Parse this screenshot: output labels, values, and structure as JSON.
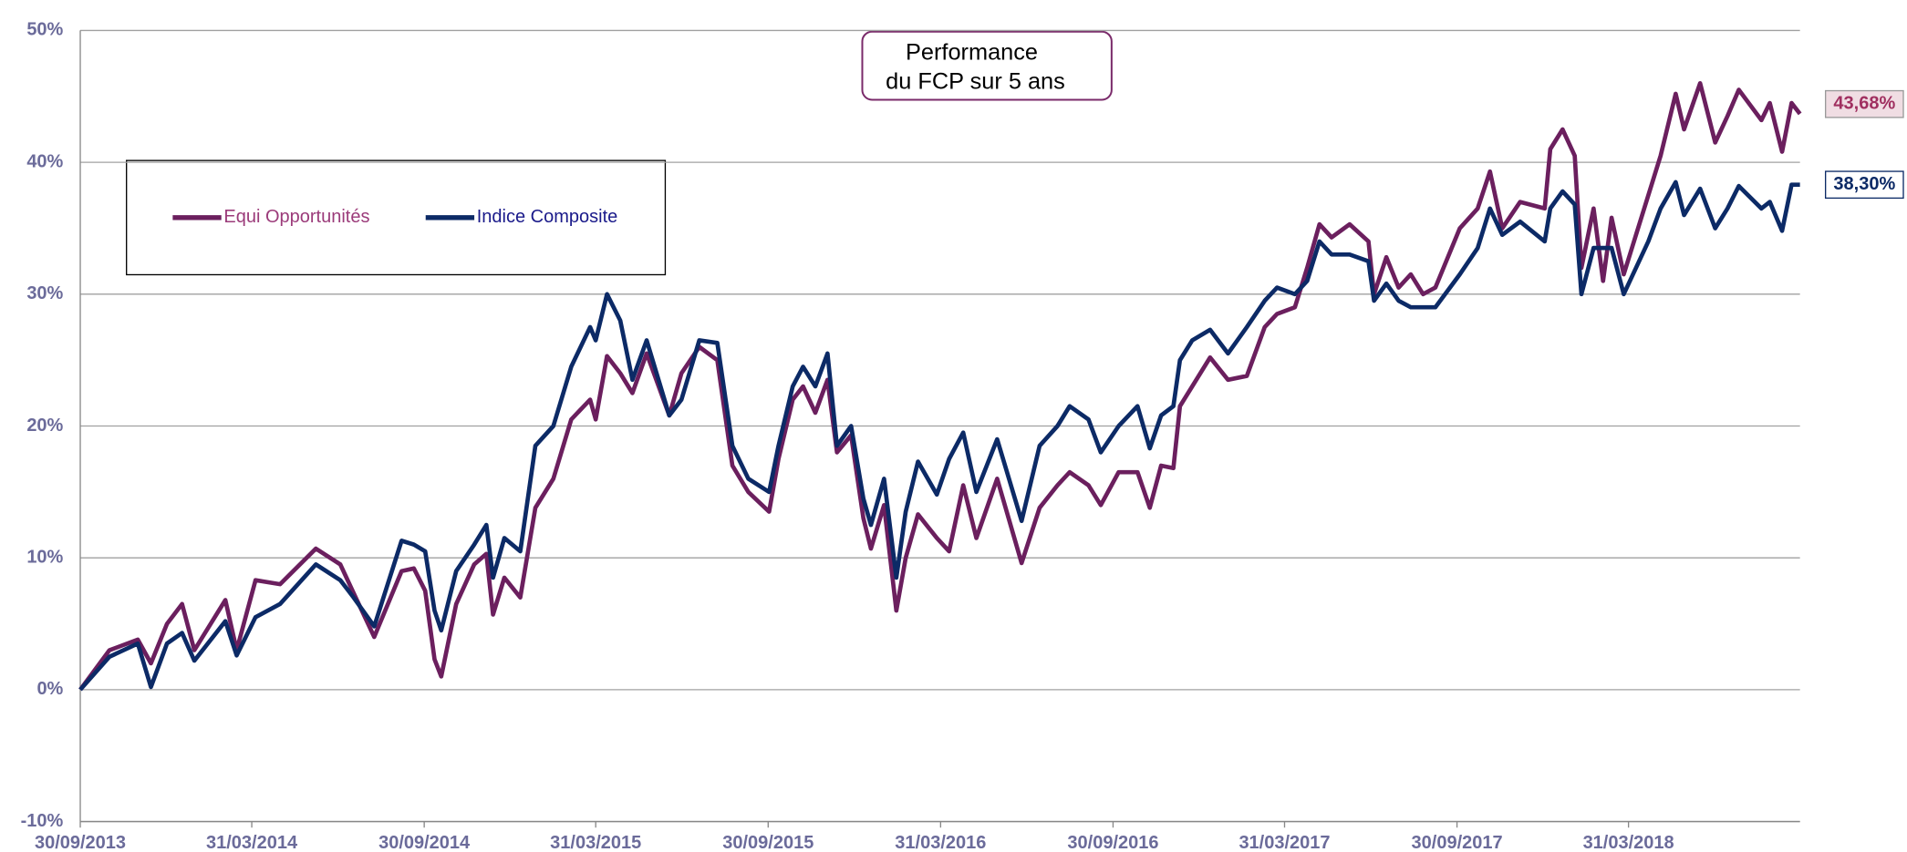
{
  "chart_data": {
    "type": "line",
    "title": [
      "Performance",
      "du FCP sur 5 ans"
    ],
    "x": [
      "30/09/2013",
      "31/10/2013",
      "30/11/2013",
      "14/12/2013",
      "31/12/2013",
      "16/01/2014",
      "29/01/2014",
      "03/03/2014",
      "15/03/2014",
      "04/04/2014",
      "30/04/2014",
      "07/06/2014",
      "03/07/2014",
      "16/07/2014",
      "08/08/2014",
      "06/09/2014",
      "19/09/2014",
      "01/10/2014",
      "11/10/2014",
      "18/10/2014",
      "03/11/2014",
      "22/11/2014",
      "05/12/2014",
      "12/12/2014",
      "24/12/2014",
      "10/01/2015",
      "26/01/2015",
      "14/02/2015",
      "05/03/2015",
      "25/03/2015",
      "31/03/2015",
      "12/04/2015",
      "26/04/2015",
      "09/05/2015",
      "24/05/2015",
      "17/06/2015",
      "30/06/2015",
      "19/07/2015",
      "07/08/2015",
      "23/08/2015",
      "09/09/2015",
      "01/10/2015",
      "11/10/2015",
      "26/10/2015",
      "06/11/2015",
      "19/11/2015",
      "02/12/2015",
      "12/12/2015",
      "27/12/2015",
      "09/01/2016",
      "17/01/2016",
      "31/01/2016",
      "13/02/2016",
      "23/02/2016",
      "07/03/2016",
      "27/03/2016",
      "09/04/2016",
      "24/04/2016",
      "08/05/2016",
      "30/05/2016",
      "25/06/2016",
      "14/07/2016",
      "02/08/2016",
      "15/08/2016",
      "04/09/2016",
      "17/09/2016",
      "06/10/2016",
      "26/10/2016",
      "08/11/2016",
      "20/11/2016",
      "03/12/2016",
      "10/12/2016",
      "23/12/2016",
      "11/01/2017",
      "30/01/2017",
      "19/02/2017",
      "10/03/2017",
      "23/03/2017",
      "11/04/2017",
      "24/04/2017",
      "07/05/2017",
      "20/05/2017",
      "08/06/2017",
      "28/06/2017",
      "04/07/2017",
      "17/07/2017",
      "30/07/2017",
      "12/08/2017",
      "25/08/2017",
      "07/09/2017",
      "03/10/2017",
      "22/10/2017",
      "04/11/2017",
      "17/11/2017",
      "06/12/2017",
      "01/01/2018",
      "07/01/2018",
      "20/01/2018",
      "02/02/2018",
      "09/02/2018",
      "22/02/2018",
      "04/03/2018",
      "13/03/2018",
      "26/03/2018",
      "21/04/2018",
      "04/05/2018",
      "20/05/2018",
      "29/05/2018",
      "15/06/2018",
      "01/07/2018",
      "14/07/2018",
      "26/07/2018",
      "19/08/2018",
      "28/08/2018",
      "10/09/2018",
      "20/09/2018",
      "29/09/2018"
    ],
    "series": [
      {
        "name": "Equi Opportunités",
        "color": "#6b1f5e",
        "end_label": "43,68%",
        "values": [
          0,
          3,
          3.8,
          2,
          5,
          6.5,
          3,
          6.8,
          3,
          8.3,
          8,
          10.7,
          9.5,
          7.5,
          4,
          9,
          9.2,
          7.5,
          2.3,
          1,
          6.5,
          9.5,
          10.3,
          5.7,
          8.5,
          7,
          13.8,
          16,
          20.5,
          22,
          20.5,
          25.3,
          24,
          22.5,
          25.5,
          20.8,
          24,
          26,
          25,
          17,
          15,
          13.5,
          17.5,
          22,
          23,
          21,
          23.5,
          18,
          19.3,
          13,
          10.7,
          14,
          6,
          10,
          13.3,
          11.5,
          10.5,
          15.5,
          11.5,
          16,
          9.6,
          13.8,
          15.5,
          16.5,
          15.5,
          14,
          16.5,
          16.5,
          13.8,
          17,
          16.8,
          21.5,
          23,
          25.2,
          23.5,
          23.8,
          27.5,
          28.5,
          29,
          32,
          35.3,
          34.3,
          35.3,
          34,
          30,
          32.8,
          30.5,
          31.5,
          30,
          30.5,
          35,
          36.5,
          39.3,
          35,
          37,
          36.5,
          41,
          42.5,
          40.5,
          32,
          36.5,
          31,
          35.8,
          31.5,
          37.5,
          40.5,
          45.2,
          42.5,
          46,
          41.5,
          43.5,
          45.5,
          43.2,
          44.5,
          40.8,
          44.5,
          43.68
        ]
      },
      {
        "name": "Indice Composite",
        "color": "#0c2a66",
        "end_label": "38,30%",
        "values": [
          0,
          2.5,
          3.5,
          0.2,
          3.5,
          4.3,
          2.2,
          5.2,
          2.6,
          5.5,
          6.5,
          9.5,
          8.3,
          7.1,
          4.8,
          11.3,
          11,
          10.5,
          6,
          4.5,
          9,
          11,
          12.5,
          8.5,
          11.5,
          10.5,
          18.5,
          20,
          24.5,
          27.5,
          26.5,
          30,
          28,
          23.5,
          26.5,
          20.8,
          22,
          26.5,
          26.3,
          18.5,
          16,
          15,
          18.5,
          23,
          24.5,
          23,
          25.5,
          18.5,
          20,
          14.5,
          12.5,
          16,
          8.5,
          13.5,
          17.3,
          14.8,
          17.5,
          19.5,
          15,
          19,
          12.8,
          18.5,
          20,
          21.5,
          20.5,
          18,
          20,
          21.5,
          18.3,
          20.8,
          21.5,
          25,
          26.5,
          27.3,
          25.5,
          27.5,
          29.5,
          30.5,
          30,
          31,
          34,
          33,
          33,
          32.5,
          29.5,
          30.8,
          29.5,
          29,
          29,
          29,
          31.5,
          33.5,
          36.5,
          34.5,
          35.5,
          34,
          36.5,
          37.8,
          36.8,
          30,
          33.5,
          33.5,
          33.5,
          30,
          34,
          36.5,
          38.5,
          36,
          38,
          35,
          36.5,
          38.2,
          36.5,
          37,
          34.8,
          38.3,
          38.3
        ]
      }
    ],
    "xlim": [
      "30/09/2013",
      "30/09/2018"
    ],
    "xticks": [
      "30/09/2013",
      "31/03/2014",
      "30/09/2014",
      "31/03/2015",
      "30/09/2015",
      "31/03/2016",
      "30/09/2016",
      "31/03/2017",
      "30/09/2017",
      "31/03/2018"
    ],
    "ylim": [
      -10,
      50
    ],
    "yticks": [
      {
        "value": -10,
        "label": "-10%"
      },
      {
        "value": 0,
        "label": "0%"
      },
      {
        "value": 10,
        "label": "10%"
      },
      {
        "value": 20,
        "label": "20%"
      },
      {
        "value": 30,
        "label": "30%"
      },
      {
        "value": 40,
        "label": "40%"
      },
      {
        "value": 50,
        "label": "50%"
      }
    ],
    "grid": true
  }
}
